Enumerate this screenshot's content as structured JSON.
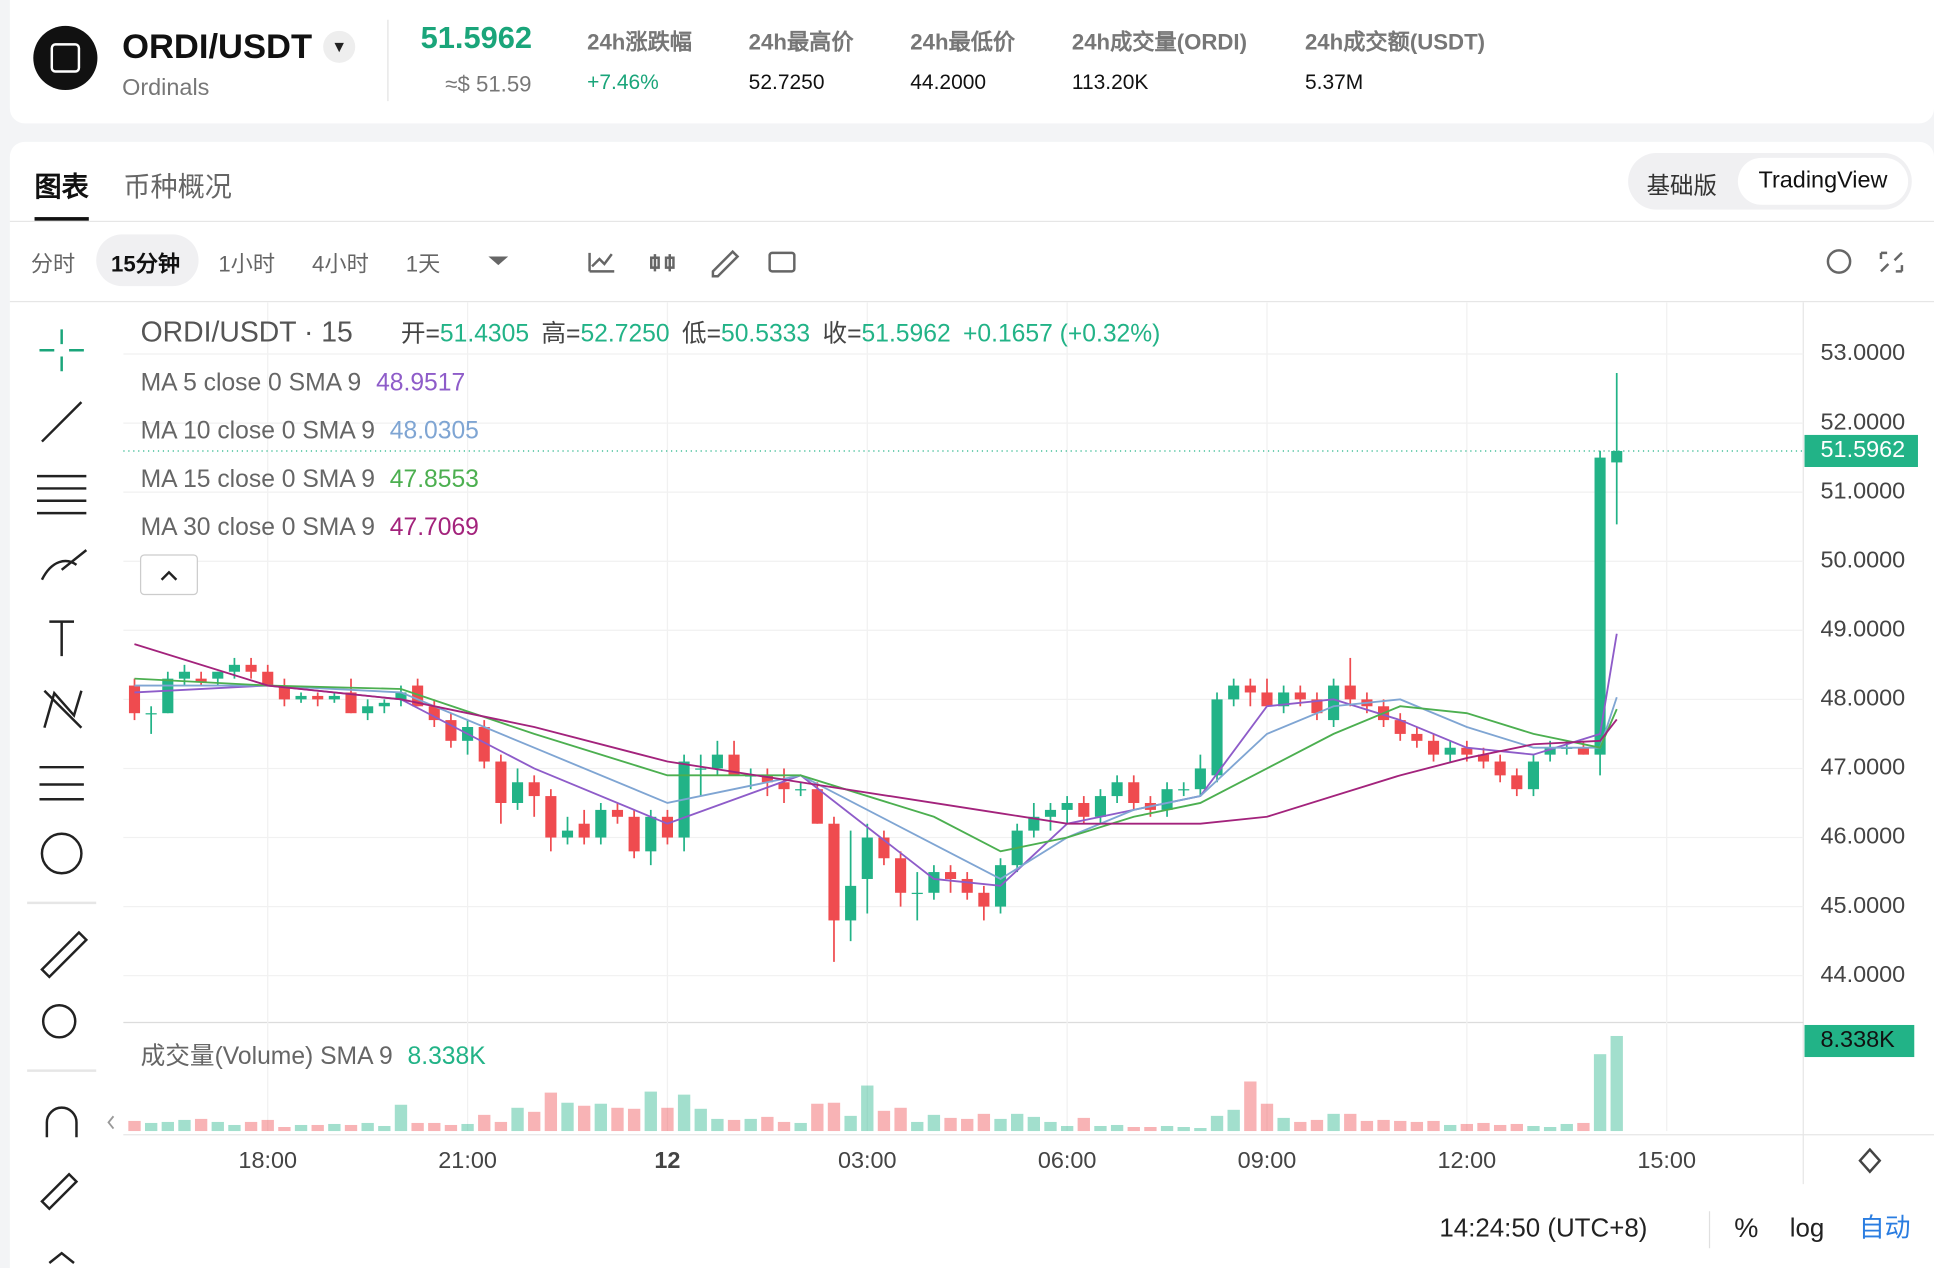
{
  "header": {
    "symbol": "ORDI/USDT",
    "name": "Ordinals",
    "price": "51.5962",
    "price_usd": "≈$ 51.59",
    "stats": [
      {
        "label": "24h涨跌幅",
        "value": "+7.46%"
      },
      {
        "label": "24h最高价",
        "value": "52.7250"
      },
      {
        "label": "24h最低价",
        "value": "44.2000"
      },
      {
        "label": "24h成交量(ORDI)",
        "value": "113.20K"
      },
      {
        "label": "24h成交额(USDT)",
        "value": "5.37M"
      }
    ]
  },
  "tabs": [
    "图表",
    "币种概况"
  ],
  "view_modes": [
    "基础版",
    "TradingView"
  ],
  "intervals": [
    "分时",
    "15分钟",
    "1小时",
    "4小时",
    "1天"
  ],
  "chart_data": {
    "type": "candlestick",
    "title": "ORDI/USDT · 15",
    "ohlc_legend": [
      {
        "label": "开=",
        "value": "51.4305"
      },
      {
        "label": "高=",
        "value": "52.7250"
      },
      {
        "label": "低=",
        "value": "50.5333"
      },
      {
        "label": "收=",
        "value": "51.5962"
      }
    ],
    "change": "+0.1657 (+0.32%)",
    "up_color": "#22b387",
    "down_color": "#ef4b4f",
    "open": [
      48.2,
      47.8,
      47.8,
      48.3,
      48.3,
      48.3,
      48.4,
      48.5,
      48.4,
      48.2,
      48.0,
      48.05,
      48.0,
      48.1,
      47.8,
      47.9,
      48.0,
      48.2,
      47.9,
      47.7,
      47.4,
      47.6,
      47.1,
      46.5,
      46.8,
      46.6,
      46.0,
      46.2,
      46.0,
      46.4,
      46.3,
      45.8,
      46.3,
      46.0,
      47.0,
      47.0,
      47.2,
      46.9,
      46.9,
      46.8,
      46.7,
      46.7,
      46.2,
      44.8,
      45.4,
      46.0,
      45.7,
      45.2,
      45.2,
      45.5,
      45.4,
      45.2,
      45.0,
      45.6,
      46.1,
      46.3,
      46.4,
      46.5,
      46.3,
      46.6,
      46.8,
      46.5,
      46.4,
      46.7,
      46.7,
      46.9,
      48.0,
      48.2,
      48.1,
      47.9,
      48.1,
      48.0,
      47.7,
      48.2,
      48.0,
      47.9,
      47.7,
      47.5,
      47.4,
      47.2,
      47.3,
      47.2,
      47.1,
      46.9,
      46.7,
      47.2,
      47.3,
      47.3,
      47.2,
      51.4305
    ],
    "high": [
      48.3,
      47.9,
      48.4,
      48.5,
      48.4,
      48.4,
      48.6,
      48.6,
      48.5,
      48.3,
      48.1,
      48.1,
      48.1,
      48.3,
      48.0,
      48.0,
      48.2,
      48.3,
      48.0,
      47.8,
      47.7,
      47.7,
      47.2,
      47.0,
      46.9,
      46.7,
      46.3,
      46.4,
      46.5,
      46.5,
      46.4,
      46.4,
      46.4,
      47.2,
      47.2,
      47.4,
      47.4,
      47.0,
      47.0,
      47.0,
      46.8,
      46.8,
      46.3,
      46.1,
      46.2,
      46.1,
      45.8,
      45.5,
      45.6,
      45.6,
      45.5,
      45.3,
      45.7,
      46.2,
      46.5,
      46.5,
      46.6,
      46.6,
      46.7,
      46.9,
      46.9,
      46.6,
      46.8,
      46.8,
      47.2,
      48.1,
      48.3,
      48.3,
      48.3,
      48.2,
      48.2,
      48.1,
      48.3,
      48.6,
      48.1,
      48.0,
      47.8,
      47.6,
      47.5,
      47.4,
      47.4,
      47.3,
      47.2,
      47.0,
      47.2,
      47.4,
      47.4,
      47.4,
      51.6,
      52.725
    ],
    "low": [
      47.7,
      47.5,
      47.8,
      48.2,
      48.2,
      48.2,
      48.3,
      48.3,
      48.2,
      47.9,
      47.95,
      47.9,
      47.95,
      47.8,
      47.7,
      47.8,
      47.9,
      47.9,
      47.6,
      47.3,
      47.2,
      47.0,
      46.2,
      46.4,
      46.3,
      45.8,
      45.9,
      45.9,
      45.9,
      46.2,
      45.7,
      45.6,
      45.9,
      45.8,
      46.6,
      46.9,
      46.9,
      46.7,
      46.6,
      46.5,
      46.6,
      46.2,
      44.2,
      44.5,
      44.9,
      45.6,
      45.0,
      44.8,
      45.1,
      45.2,
      45.1,
      44.8,
      44.9,
      45.5,
      46.0,
      46.1,
      46.2,
      46.2,
      46.2,
      46.5,
      46.4,
      46.3,
      46.3,
      46.6,
      46.6,
      46.8,
      47.9,
      47.9,
      47.9,
      47.8,
      47.9,
      47.7,
      47.6,
      47.9,
      47.8,
      47.6,
      47.4,
      47.3,
      47.1,
      47.1,
      47.1,
      47.0,
      46.8,
      46.6,
      46.6,
      47.1,
      47.2,
      47.2,
      46.9,
      50.5333
    ],
    "close": [
      47.8,
      47.8,
      48.3,
      48.4,
      48.25,
      48.4,
      48.5,
      48.4,
      48.2,
      48.0,
      48.05,
      48.0,
      48.05,
      47.8,
      47.9,
      47.95,
      48.1,
      47.9,
      47.7,
      47.4,
      47.6,
      47.1,
      46.5,
      46.8,
      46.6,
      46.0,
      46.1,
      46.0,
      46.4,
      46.3,
      45.8,
      46.3,
      46.0,
      47.1,
      47.0,
      47.2,
      46.9,
      46.9,
      46.8,
      46.7,
      46.7,
      46.2,
      44.8,
      45.3,
      46.0,
      45.7,
      45.2,
      45.2,
      45.5,
      45.4,
      45.2,
      45.0,
      45.6,
      46.1,
      46.3,
      46.4,
      46.5,
      46.3,
      46.6,
      46.8,
      46.5,
      46.4,
      46.7,
      46.7,
      47.0,
      48.0,
      48.2,
      48.1,
      47.9,
      48.1,
      48.0,
      47.8,
      48.2,
      48.0,
      47.9,
      47.7,
      47.5,
      47.4,
      47.2,
      47.3,
      47.2,
      47.1,
      46.9,
      46.7,
      47.1,
      47.3,
      47.3,
      47.2,
      51.5,
      51.5962
    ],
    "volume": [
      1.0,
      0.8,
      0.9,
      1.1,
      1.2,
      0.9,
      0.6,
      0.9,
      1.1,
      0.4,
      0.6,
      0.6,
      0.7,
      0.6,
      0.8,
      0.5,
      2.6,
      0.8,
      0.8,
      0.6,
      0.7,
      1.6,
      0.9,
      2.3,
      1.9,
      3.8,
      2.8,
      2.5,
      2.7,
      2.3,
      2.2,
      3.9,
      2.3,
      3.6,
      2.2,
      1.2,
      1.1,
      1.2,
      1.4,
      0.9,
      0.8,
      2.7,
      2.8,
      1.5,
      4.5,
      2.0,
      2.3,
      0.9,
      1.6,
      1.3,
      1.2,
      1.7,
      1.2,
      1.7,
      1.4,
      0.9,
      0.5,
      1.3,
      0.5,
      0.6,
      0.4,
      0.4,
      0.5,
      0.4,
      0.3,
      1.5,
      2.1,
      4.9,
      2.7,
      1.3,
      0.9,
      1.1,
      1.7,
      1.7,
      1.0,
      1.1,
      1.0,
      0.9,
      1.0,
      0.6,
      0.7,
      0.8,
      0.6,
      0.7,
      0.5,
      0.4,
      0.7,
      0.8,
      7.6,
      9.4
    ],
    "volume_title": "成交量(Volume) SMA 9",
    "volume_sma_label": "8.338K",
    "volume_ylim": [
      0,
      10
    ],
    "last_price_label": "51.5962",
    "xlim": [
      -0.67,
      100.2
    ],
    "ylim": [
      43.34,
      53.75
    ],
    "yticks": [
      {
        "value": 53,
        "label": "53.0000"
      },
      {
        "value": 52,
        "label": "52.0000"
      },
      {
        "value": 51,
        "label": "51.0000"
      },
      {
        "value": 50,
        "label": "50.0000"
      },
      {
        "value": 49,
        "label": "49.0000"
      },
      {
        "value": 48,
        "label": "48.0000"
      },
      {
        "value": 47,
        "label": "47.0000"
      },
      {
        "value": 46,
        "label": "46.0000"
      },
      {
        "value": 45,
        "label": "45.0000"
      },
      {
        "value": 44,
        "label": "44.0000"
      }
    ],
    "xticks": [
      {
        "value": 8,
        "label": "18:00"
      },
      {
        "value": 20,
        "label": "21:00"
      },
      {
        "value": 32,
        "label": "12"
      },
      {
        "value": 44,
        "label": "03:00"
      },
      {
        "value": 56,
        "label": "06:00"
      },
      {
        "value": 68,
        "label": "09:00"
      },
      {
        "value": 80,
        "label": "12:00"
      },
      {
        "value": 92,
        "label": "15:00"
      }
    ],
    "grid": true,
    "ma_x": [
      0,
      8,
      16,
      24,
      32,
      40,
      48,
      52,
      56,
      60,
      64,
      68,
      72,
      76,
      80,
      84,
      88,
      89
    ],
    "ma_series": [
      {
        "name": "MA 5 close 0 SMA 9",
        "color": "#8e5cc9",
        "value_label": "48.9517",
        "values": [
          48.1,
          48.2,
          48.0,
          47.0,
          46.2,
          46.9,
          45.4,
          45.3,
          46.2,
          46.4,
          46.6,
          47.9,
          48.0,
          47.7,
          47.3,
          47.2,
          47.5,
          48.95
        ]
      },
      {
        "name": "MA 10 close 0 SMA 9",
        "color": "#7fa5d3",
        "value_label": "48.0305",
        "values": [
          48.2,
          48.2,
          48.1,
          47.3,
          46.5,
          46.9,
          45.9,
          45.4,
          46.0,
          46.4,
          46.6,
          47.5,
          47.9,
          48.0,
          47.6,
          47.3,
          47.3,
          48.03
        ]
      },
      {
        "name": "MA 15 close 0 SMA 9",
        "color": "#4caf50",
        "value_label": "47.8553",
        "values": [
          48.3,
          48.2,
          48.15,
          47.5,
          46.9,
          46.9,
          46.3,
          45.8,
          46.0,
          46.3,
          46.5,
          47.0,
          47.5,
          47.9,
          47.8,
          47.5,
          47.3,
          47.86
        ]
      },
      {
        "name": "MA 30 close 0 SMA 9",
        "color": "#a3237c",
        "value_label": "47.7069",
        "values": [
          48.8,
          48.2,
          48.0,
          47.6,
          47.1,
          46.8,
          46.5,
          46.35,
          46.2,
          46.2,
          46.2,
          46.3,
          46.6,
          46.9,
          47.15,
          47.35,
          47.4,
          47.71
        ]
      }
    ]
  },
  "footer": {
    "clock": "14:24:50 (UTC+8)",
    "percent": "%",
    "log": "log",
    "auto": "自动"
  }
}
